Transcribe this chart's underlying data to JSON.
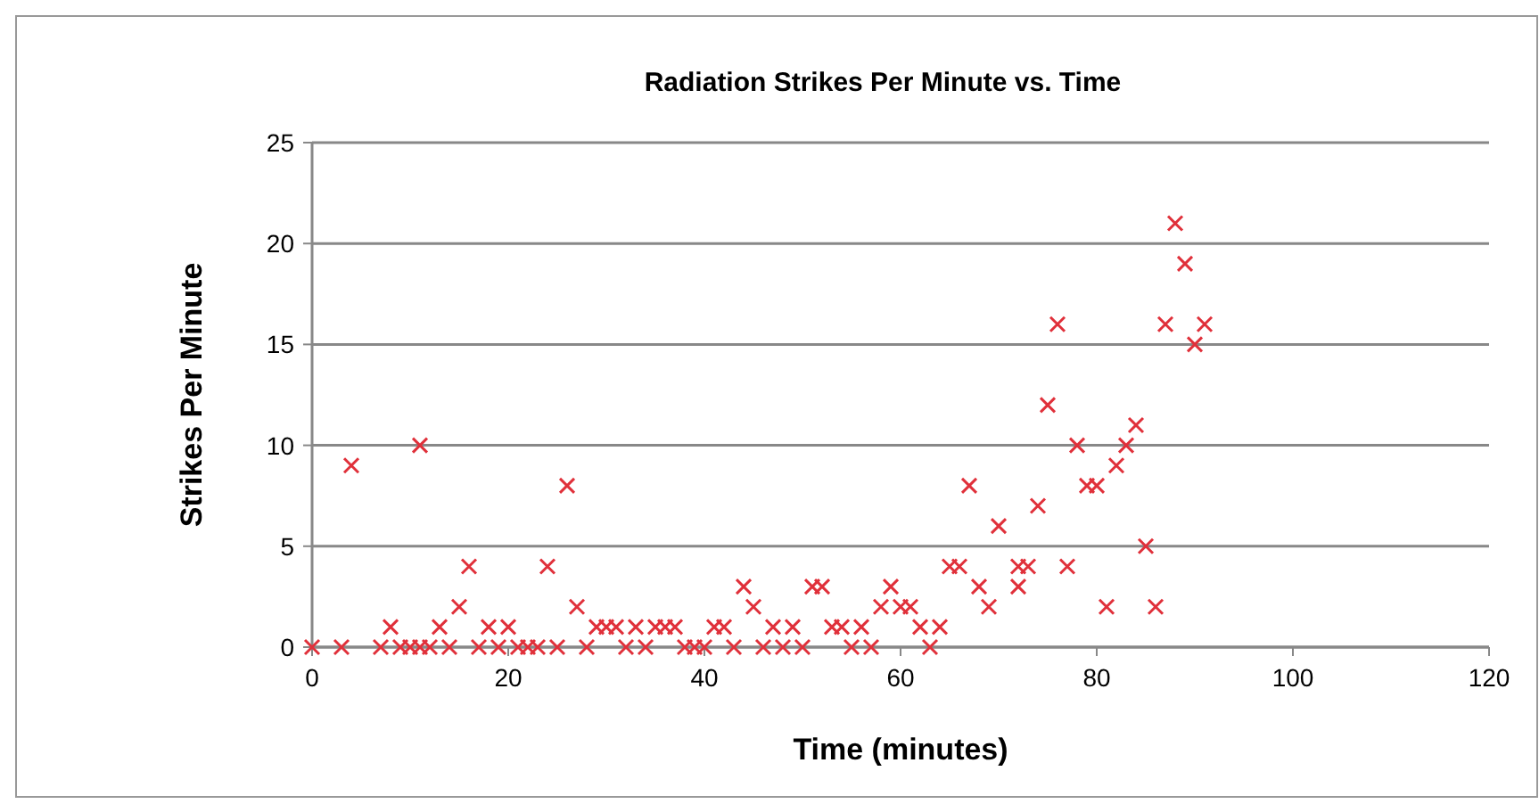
{
  "chart_data": {
    "type": "scatter",
    "title": "Radiation Strikes Per Minute vs. Time",
    "xlabel": "Time (minutes)",
    "ylabel": "Strikes Per Minute",
    "xlim": [
      0,
      120
    ],
    "xticks": [
      0,
      20,
      40,
      60,
      80,
      100,
      120
    ],
    "ylim": [
      0,
      25
    ],
    "yticks": [
      0,
      5,
      10,
      15,
      20,
      25
    ],
    "grid": "y",
    "marker": "cross",
    "series": [
      {
        "color": "#e0303a",
        "x": [
          0,
          3,
          4,
          7,
          8,
          9,
          10,
          11,
          11,
          12,
          13,
          14,
          15,
          16,
          17,
          18,
          19,
          20,
          21,
          22,
          23,
          24,
          25,
          26,
          27,
          28,
          29,
          30,
          31,
          32,
          33,
          34,
          35,
          36,
          37,
          38,
          39,
          40,
          41,
          42,
          43,
          44,
          45,
          46,
          47,
          48,
          49,
          50,
          51,
          52,
          53,
          54,
          55,
          56,
          57,
          58,
          59,
          60,
          61,
          62,
          63,
          64,
          65,
          66,
          67,
          68,
          69,
          70,
          72,
          72,
          73,
          74,
          75,
          76,
          77,
          78,
          79,
          80,
          81,
          82,
          83,
          84,
          85,
          86,
          87,
          88,
          89,
          90,
          91
        ],
        "values": [
          0,
          0,
          9,
          0,
          1,
          0,
          0,
          10,
          0,
          0,
          1,
          0,
          2,
          4,
          0,
          1,
          0,
          1,
          0,
          0,
          0,
          4,
          0,
          8,
          2,
          0,
          1,
          1,
          1,
          0,
          1,
          0,
          1,
          1,
          1,
          0,
          0,
          0,
          1,
          1,
          0,
          3,
          2,
          0,
          1,
          0,
          1,
          0,
          3,
          3,
          1,
          1,
          0,
          1,
          0,
          2,
          3,
          2,
          2,
          1,
          0,
          1,
          4,
          4,
          8,
          3,
          2,
          6,
          3,
          4,
          4,
          7,
          12,
          16,
          4,
          10,
          8,
          8,
          2,
          9,
          10,
          11,
          5,
          2,
          16,
          21,
          19,
          15,
          16
        ]
      }
    ]
  }
}
